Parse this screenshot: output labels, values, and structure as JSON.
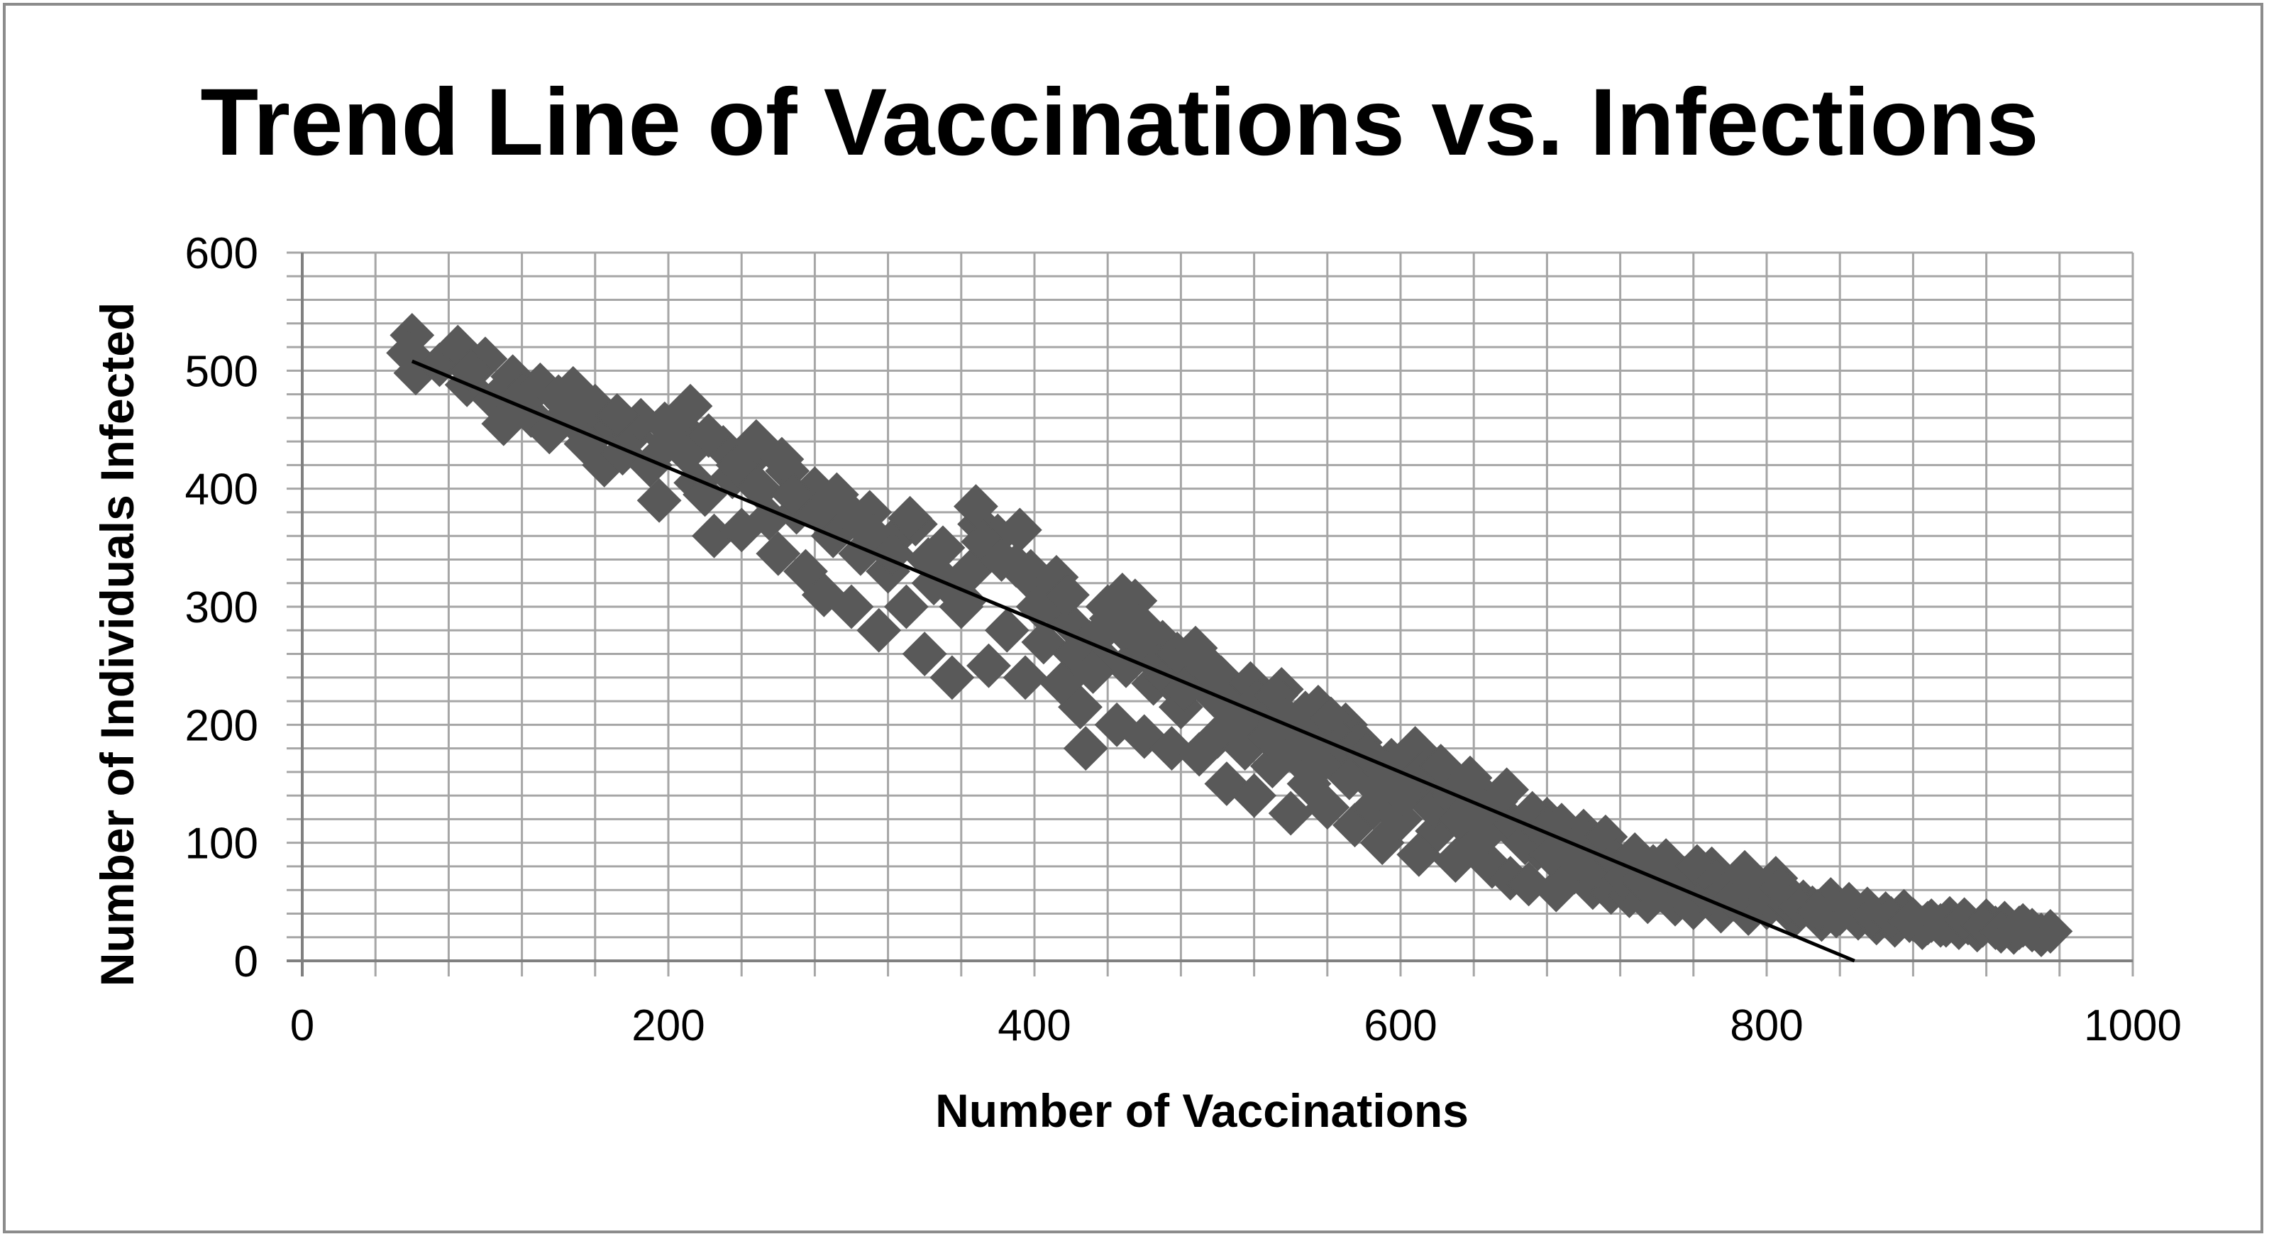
{
  "chart_data": {
    "type": "scatter",
    "title": "Trend Line of Vaccinations vs. Infections",
    "xlabel": "Number of Vaccinations",
    "ylabel": "Number of Individuals Infected",
    "xlim": [
      0,
      1000
    ],
    "ylim": [
      0,
      600
    ],
    "x_ticks": [
      0,
      200,
      400,
      600,
      800,
      1000
    ],
    "y_ticks": [
      0,
      100,
      200,
      300,
      400,
      500,
      600
    ],
    "x_tick_labels": [
      "0",
      "200",
      "400",
      "600",
      "800",
      "1000"
    ],
    "y_tick_labels": [
      "0",
      "100",
      "200",
      "300",
      "400",
      "500",
      "600"
    ],
    "x_minor_step": 40,
    "y_minor_step": 20,
    "grid": true,
    "legend": "none",
    "marker": "diamond",
    "marker_color": "#595959",
    "trendline_color": "#000000",
    "gridline_color": "#a6a6a6",
    "trendline": {
      "type": "linear",
      "x_start": 60,
      "y_start": 508,
      "x_end": 848,
      "y_end": 0
    },
    "points": [
      [
        60,
        530
      ],
      [
        62,
        498
      ],
      [
        75,
        505
      ],
      [
        85,
        520
      ],
      [
        90,
        488
      ],
      [
        100,
        510
      ],
      [
        105,
        475
      ],
      [
        110,
        455
      ],
      [
        115,
        495
      ],
      [
        120,
        480
      ],
      [
        125,
        462
      ],
      [
        130,
        488
      ],
      [
        135,
        448
      ],
      [
        140,
        478
      ],
      [
        145,
        470
      ],
      [
        150,
        455
      ],
      [
        155,
        438
      ],
      [
        160,
        470
      ],
      [
        165,
        420
      ],
      [
        170,
        452
      ],
      [
        175,
        430
      ],
      [
        180,
        445
      ],
      [
        185,
        458
      ],
      [
        190,
        420
      ],
      [
        195,
        390
      ],
      [
        200,
        440
      ],
      [
        205,
        455
      ],
      [
        210,
        430
      ],
      [
        215,
        405
      ],
      [
        220,
        395
      ],
      [
        225,
        360
      ],
      [
        230,
        435
      ],
      [
        235,
        410
      ],
      [
        240,
        365
      ],
      [
        245,
        425
      ],
      [
        250,
        400
      ],
      [
        255,
        375
      ],
      [
        260,
        345
      ],
      [
        265,
        415
      ],
      [
        270,
        380
      ],
      [
        275,
        330
      ],
      [
        280,
        400
      ],
      [
        285,
        310
      ],
      [
        290,
        360
      ],
      [
        295,
        385
      ],
      [
        300,
        300
      ],
      [
        305,
        345
      ],
      [
        310,
        380
      ],
      [
        315,
        280
      ],
      [
        320,
        330
      ],
      [
        325,
        360
      ],
      [
        330,
        300
      ],
      [
        335,
        370
      ],
      [
        340,
        260
      ],
      [
        345,
        320
      ],
      [
        350,
        350
      ],
      [
        355,
        240
      ],
      [
        360,
        300
      ],
      [
        365,
        330
      ],
      [
        370,
        370
      ],
      [
        375,
        250
      ],
      [
        380,
        360
      ],
      [
        385,
        280
      ],
      [
        390,
        335
      ],
      [
        395,
        240
      ],
      [
        400,
        320
      ],
      [
        405,
        270
      ],
      [
        410,
        300
      ],
      [
        415,
        235
      ],
      [
        420,
        285
      ],
      [
        425,
        215
      ],
      [
        428,
        180
      ],
      [
        430,
        270
      ],
      [
        435,
        260
      ],
      [
        440,
        300
      ],
      [
        445,
        200
      ],
      [
        450,
        250
      ],
      [
        455,
        305
      ],
      [
        460,
        190
      ],
      [
        465,
        235
      ],
      [
        470,
        270
      ],
      [
        475,
        180
      ],
      [
        480,
        215
      ],
      [
        485,
        250
      ],
      [
        490,
        175
      ],
      [
        495,
        235
      ],
      [
        500,
        190
      ],
      [
        505,
        150
      ],
      [
        510,
        220
      ],
      [
        515,
        180
      ],
      [
        520,
        140
      ],
      [
        525,
        205
      ],
      [
        530,
        165
      ],
      [
        535,
        230
      ],
      [
        540,
        125
      ],
      [
        545,
        185
      ],
      [
        550,
        150
      ],
      [
        555,
        215
      ],
      [
        560,
        130
      ],
      [
        565,
        175
      ],
      [
        570,
        200
      ],
      [
        575,
        115
      ],
      [
        580,
        160
      ],
      [
        585,
        130
      ],
      [
        590,
        100
      ],
      [
        595,
        170
      ],
      [
        600,
        120
      ],
      [
        605,
        165
      ],
      [
        610,
        90
      ],
      [
        615,
        145
      ],
      [
        620,
        110
      ],
      [
        625,
        150
      ],
      [
        630,
        85
      ],
      [
        635,
        130
      ],
      [
        640,
        100
      ],
      [
        645,
        140
      ],
      [
        650,
        80
      ],
      [
        655,
        120
      ],
      [
        660,
        70
      ],
      [
        665,
        105
      ],
      [
        670,
        65
      ],
      [
        675,
        95
      ],
      [
        680,
        120
      ],
      [
        685,
        60
      ],
      [
        690,
        100
      ],
      [
        695,
        75
      ],
      [
        700,
        110
      ],
      [
        705,
        62
      ],
      [
        710,
        90
      ],
      [
        715,
        58
      ],
      [
        720,
        80
      ],
      [
        725,
        55
      ],
      [
        730,
        75
      ],
      [
        735,
        50
      ],
      [
        740,
        65
      ],
      [
        745,
        85
      ],
      [
        750,
        48
      ],
      [
        755,
        70
      ],
      [
        760,
        45
      ],
      [
        765,
        60
      ],
      [
        770,
        78
      ],
      [
        775,
        42
      ],
      [
        780,
        55
      ],
      [
        785,
        70
      ],
      [
        790,
        40
      ],
      [
        795,
        60
      ],
      [
        800,
        45
      ],
      [
        805,
        70
      ],
      [
        810,
        55
      ],
      [
        815,
        38
      ],
      [
        820,
        50
      ],
      [
        825,
        45
      ],
      [
        830,
        35
      ],
      [
        835,
        52
      ],
      [
        840,
        40
      ],
      [
        845,
        48
      ],
      [
        850,
        36
      ],
      [
        855,
        44
      ],
      [
        860,
        32
      ],
      [
        865,
        40
      ],
      [
        870,
        30
      ],
      [
        875,
        42
      ],
      [
        880,
        35
      ],
      [
        885,
        28
      ],
      [
        890,
        34
      ],
      [
        895,
        30
      ],
      [
        900,
        36
      ],
      [
        905,
        28
      ],
      [
        910,
        32
      ],
      [
        915,
        26
      ],
      [
        920,
        34
      ],
      [
        925,
        28
      ],
      [
        930,
        32
      ],
      [
        935,
        24
      ],
      [
        940,
        30
      ],
      [
        945,
        26
      ],
      [
        950,
        22
      ],
      [
        955,
        25
      ],
      [
        58,
        515
      ],
      [
        92,
        500
      ],
      [
        118,
        470
      ],
      [
        148,
        485
      ],
      [
        172,
        462
      ],
      [
        198,
        455
      ],
      [
        212,
        470
      ],
      [
        222,
        445
      ],
      [
        238,
        420
      ],
      [
        248,
        440
      ],
      [
        262,
        425
      ],
      [
        268,
        395
      ],
      [
        282,
        380
      ],
      [
        292,
        395
      ],
      [
        302,
        375
      ],
      [
        312,
        360
      ],
      [
        322,
        345
      ],
      [
        332,
        375
      ],
      [
        342,
        340
      ],
      [
        352,
        320
      ],
      [
        362,
        305
      ],
      [
        368,
        385
      ],
      [
        372,
        355
      ],
      [
        382,
        340
      ],
      [
        392,
        365
      ],
      [
        398,
        330
      ],
      [
        402,
        300
      ],
      [
        412,
        325
      ],
      [
        418,
        310
      ],
      [
        422,
        260
      ],
      [
        432,
        245
      ],
      [
        438,
        280
      ],
      [
        442,
        290
      ],
      [
        448,
        310
      ],
      [
        452,
        275
      ],
      [
        458,
        285
      ],
      [
        462,
        265
      ],
      [
        468,
        250
      ],
      [
        472,
        240
      ],
      [
        478,
        260
      ],
      [
        482,
        230
      ],
      [
        488,
        265
      ],
      [
        492,
        255
      ],
      [
        498,
        225
      ],
      [
        502,
        240
      ],
      [
        508,
        210
      ],
      [
        512,
        195
      ],
      [
        518,
        235
      ],
      [
        522,
        220
      ],
      [
        528,
        190
      ],
      [
        532,
        225
      ],
      [
        538,
        205
      ],
      [
        542,
        175
      ],
      [
        548,
        210
      ],
      [
        552,
        190
      ],
      [
        558,
        170
      ],
      [
        562,
        205
      ],
      [
        568,
        185
      ],
      [
        572,
        155
      ],
      [
        578,
        185
      ],
      [
        582,
        175
      ],
      [
        588,
        145
      ],
      [
        592,
        160
      ],
      [
        598,
        155
      ],
      [
        602,
        140
      ],
      [
        608,
        180
      ],
      [
        612,
        160
      ],
      [
        618,
        130
      ],
      [
        622,
        165
      ],
      [
        628,
        140
      ],
      [
        632,
        120
      ],
      [
        638,
        155
      ],
      [
        642,
        130
      ],
      [
        648,
        110
      ],
      [
        652,
        135
      ],
      [
        658,
        145
      ],
      [
        662,
        115
      ],
      [
        668,
        100
      ],
      [
        672,
        125
      ],
      [
        678,
        110
      ],
      [
        682,
        90
      ],
      [
        688,
        115
      ],
      [
        692,
        95
      ],
      [
        698,
        85
      ],
      [
        702,
        100
      ],
      [
        708,
        80
      ],
      [
        712,
        105
      ],
      [
        718,
        85
      ],
      [
        722,
        70
      ],
      [
        728,
        90
      ],
      [
        732,
        68
      ],
      [
        738,
        80
      ],
      [
        742,
        60
      ],
      [
        748,
        78
      ],
      [
        752,
        62
      ],
      [
        758,
        58
      ],
      [
        762,
        80
      ],
      [
        768,
        55
      ],
      [
        772,
        68
      ],
      [
        778,
        60
      ],
      [
        782,
        52
      ],
      [
        788,
        75
      ],
      [
        792,
        65
      ],
      [
        798,
        58
      ],
      [
        802,
        52
      ],
      [
        808,
        62
      ],
      [
        812,
        48
      ],
      [
        818,
        45
      ],
      [
        828,
        42
      ],
      [
        838,
        38
      ],
      [
        848,
        42
      ],
      [
        858,
        38
      ],
      [
        868,
        36
      ],
      [
        878,
        34
      ],
      [
        888,
        32
      ],
      [
        898,
        30
      ],
      [
        908,
        35
      ],
      [
        918,
        30
      ],
      [
        928,
        25
      ],
      [
        938,
        28
      ]
    ]
  }
}
